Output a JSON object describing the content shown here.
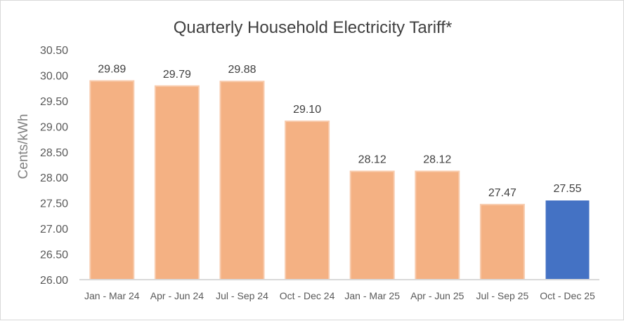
{
  "chart_data": {
    "type": "bar",
    "title": "Quarterly Household Electricity Tariff*",
    "xlabel": "",
    "ylabel": "Cents/kWh",
    "ylim": [
      26.0,
      30.5
    ],
    "ytick_step": 0.5,
    "yticks": [
      "26.00",
      "26.50",
      "27.00",
      "27.50",
      "28.00",
      "28.50",
      "29.00",
      "29.50",
      "30.00",
      "30.50"
    ],
    "categories": [
      "Jan - Mar 24",
      "Apr - Jun 24",
      "Jul - Sep 24",
      "Oct - Dec 24",
      "Jan - Mar 25",
      "Apr - Jun 25",
      "Jul - Sep 25",
      "Oct - Dec 25"
    ],
    "values": [
      29.89,
      29.79,
      29.88,
      29.1,
      28.12,
      28.12,
      27.47,
      27.55
    ],
    "data_labels": [
      "29.89",
      "29.79",
      "29.88",
      "29.10",
      "28.12",
      "28.12",
      "27.47",
      "27.55"
    ],
    "grid": false,
    "legend": "none",
    "colors": {
      "default": "#F4B183",
      "highlight": "#4472C4"
    },
    "highlight_index": 7
  }
}
